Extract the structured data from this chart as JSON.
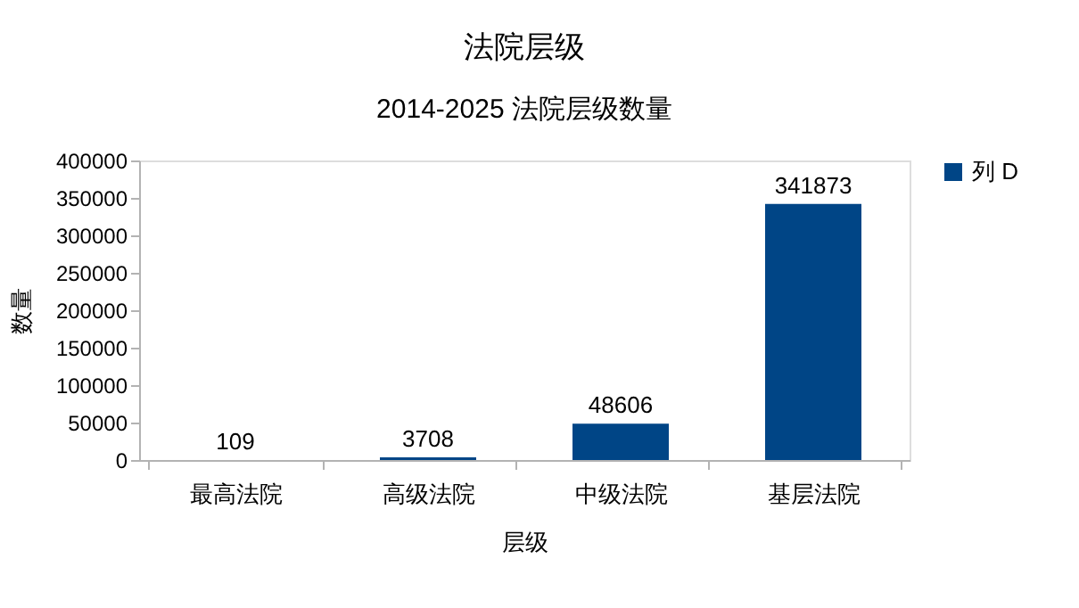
{
  "chart_data": {
    "type": "bar",
    "title": "法院层级",
    "subtitle": "2014-2025 法院层级数量",
    "xlabel": "层级",
    "ylabel": "数量",
    "categories": [
      "最高法院",
      "高级法院",
      "中级法院",
      "基层法院"
    ],
    "series": [
      {
        "name": "列 D",
        "color": "#004586",
        "values": [
          109,
          3708,
          48606,
          341873
        ]
      }
    ],
    "ylim": [
      0,
      400000
    ],
    "yticks": [
      0,
      50000,
      100000,
      150000,
      200000,
      250000,
      300000,
      350000,
      400000
    ],
    "data_labels": true,
    "legend": "right",
    "grid": false
  }
}
